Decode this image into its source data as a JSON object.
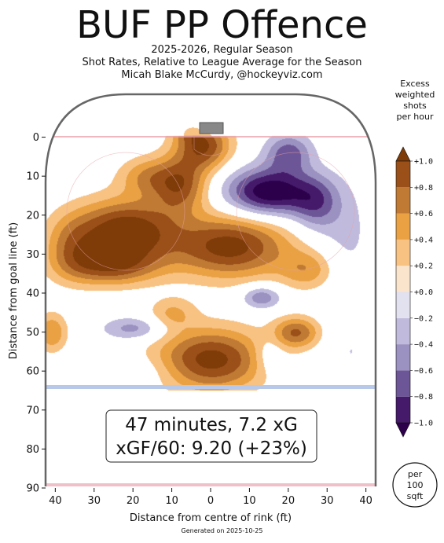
{
  "title": "BUF PP Offence",
  "subtitle_lines": [
    "2025-2026, Regular Season",
    "Shot Rates, Relative to League Average for the Season",
    "Micah Blake McCurdy, @hockeyviz.com"
  ],
  "colorbar": {
    "title_lines": [
      "Excess",
      "weighted",
      "shots",
      "per hour"
    ],
    "levels": [
      -1.0,
      -0.8,
      -0.6,
      -0.4,
      -0.2,
      0.0,
      0.2,
      0.4,
      0.6,
      0.8,
      1.0
    ],
    "tick_labels": [
      "−1.0",
      "−0.8",
      "−0.6",
      "−0.4",
      "−0.2",
      "+0.0",
      "+0.2",
      "+0.4",
      "+0.6",
      "+0.8",
      "+1.0"
    ],
    "band_colors": [
      "#2d004b",
      "#542788",
      "#8073ac",
      "#b2abd2",
      "#d8daeb",
      "#ffffff",
      "#fee0b6",
      "#fdb863",
      "#e08214",
      "#b35806",
      "#7f3b08"
    ]
  },
  "unit_badge_lines": [
    "per",
    "100",
    "sqft"
  ],
  "annotation": {
    "line1": "47 minutes, 7.2 xG",
    "line2": "xGF/60: 9.20 (+23%)"
  },
  "footer": "Generated on 2025-10-25",
  "chart_data": {
    "type": "heatmap",
    "title": "BUF PP Offence",
    "xlabel": "Distance from centre of rink (ft)",
    "ylabel": "Distance from goal line (ft)",
    "xlim": [
      -42.5,
      42.5
    ],
    "ylim": [
      90,
      -11
    ],
    "xticks": [
      -40,
      -30,
      -20,
      -10,
      0,
      10,
      20,
      30,
      40
    ],
    "xtick_labels": [
      "40",
      "30",
      "20",
      "10",
      "0",
      "10",
      "20",
      "30",
      "40"
    ],
    "yticks": [
      0,
      10,
      20,
      30,
      40,
      50,
      60,
      70,
      80,
      90
    ],
    "ytick_labels": [
      "0",
      "10",
      "20",
      "30",
      "40",
      "50",
      "60",
      "70",
      "80",
      "90"
    ],
    "zlim": [
      -1.0,
      1.0
    ],
    "blobs": [
      {
        "x": -2,
        "y": 2,
        "value": 1.0,
        "rx": 7,
        "ry": 6
      },
      {
        "x": -22,
        "y": 24,
        "value": 1.2,
        "rx": 13,
        "ry": 8
      },
      {
        "x": 5,
        "y": 28,
        "value": 1.1,
        "rx": 15,
        "ry": 8
      },
      {
        "x": -8,
        "y": 12,
        "value": 0.9,
        "rx": 7,
        "ry": 7
      },
      {
        "x": -26,
        "y": 33,
        "value": 0.8,
        "rx": 12,
        "ry": 5
      },
      {
        "x": -17,
        "y": 10,
        "value": 0.5,
        "rx": 7,
        "ry": 5
      },
      {
        "x": -36,
        "y": 28,
        "value": 0.5,
        "rx": 7,
        "ry": 8
      },
      {
        "x": 25,
        "y": 34,
        "value": 0.5,
        "rx": 7,
        "ry": 5
      },
      {
        "x": 0,
        "y": 57,
        "value": 1.1,
        "rx": 14,
        "ry": 8
      },
      {
        "x": 22,
        "y": 50,
        "value": 0.8,
        "rx": 6,
        "ry": 4
      },
      {
        "x": -10,
        "y": 45,
        "value": 0.4,
        "rx": 6,
        "ry": 4
      },
      {
        "x": -41,
        "y": 50,
        "value": 0.6,
        "rx": 4,
        "ry": 5
      },
      {
        "x": 15,
        "y": 14,
        "value": -1.2,
        "rx": 11,
        "ry": 6
      },
      {
        "x": 20,
        "y": 4,
        "value": -0.7,
        "rx": 6,
        "ry": 5
      },
      {
        "x": 27,
        "y": 17,
        "value": -0.6,
        "rx": 6,
        "ry": 7
      },
      {
        "x": 13,
        "y": 41,
        "value": -0.6,
        "rx": 5,
        "ry": 3
      },
      {
        "x": -20,
        "y": 49,
        "value": -0.5,
        "rx": 8,
        "ry": 3
      },
      {
        "x": 15,
        "y": 56,
        "value": -0.3,
        "rx": 4,
        "ry": 5
      },
      {
        "x": 35,
        "y": 25,
        "value": -0.25,
        "rx": 7,
        "ry": 14
      },
      {
        "x": -20,
        "y": 60,
        "value": -0.2,
        "rx": 12,
        "ry": 4
      },
      {
        "x": 36,
        "y": 55,
        "value": -0.2,
        "rx": 6,
        "ry": 10
      },
      {
        "x": -6,
        "y": -2,
        "value": 0.35,
        "rx": 4,
        "ry": 3
      }
    ]
  }
}
